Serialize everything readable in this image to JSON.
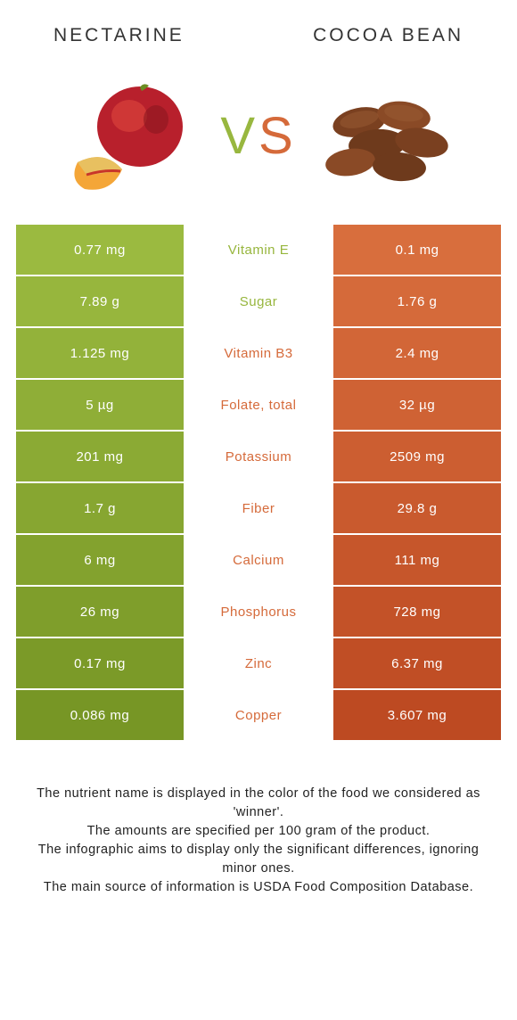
{
  "colors": {
    "left": "#97b63d",
    "right": "#d56a3a",
    "row_alt_darken": 0,
    "background": "#ffffff"
  },
  "header": {
    "left_title": "NECTARINE",
    "right_title": "COCOA BEAN",
    "vs_v": "V",
    "vs_s": "S"
  },
  "rows": [
    {
      "label": "Vitamin E",
      "left": "0.77 mg",
      "right": "0.1 mg",
      "winner": "left"
    },
    {
      "label": "Sugar",
      "left": "7.89 g",
      "right": "1.76 g",
      "winner": "left"
    },
    {
      "label": "Vitamin B3",
      "left": "1.125 mg",
      "right": "2.4 mg",
      "winner": "right"
    },
    {
      "label": "Folate, total",
      "left": "5 µg",
      "right": "32 µg",
      "winner": "right"
    },
    {
      "label": "Potassium",
      "left": "201 mg",
      "right": "2509 mg",
      "winner": "right"
    },
    {
      "label": "Fiber",
      "left": "1.7 g",
      "right": "29.8 g",
      "winner": "right"
    },
    {
      "label": "Calcium",
      "left": "6 mg",
      "right": "111 mg",
      "winner": "right"
    },
    {
      "label": "Phosphorus",
      "left": "26 mg",
      "right": "728 mg",
      "winner": "right"
    },
    {
      "label": "Zinc",
      "left": "0.17 mg",
      "right": "6.37 mg",
      "winner": "right"
    },
    {
      "label": "Copper",
      "left": "0.086 mg",
      "right": "3.607 mg",
      "winner": "right"
    }
  ],
  "row_shades": {
    "left": [
      "#9bba40",
      "#97b63d",
      "#93b23a",
      "#8fae37",
      "#8baa34",
      "#87a631",
      "#83a22e",
      "#7f9e2b",
      "#7b9a28",
      "#779625"
    ],
    "right": [
      "#d86e3d",
      "#d56a3a",
      "#d26637",
      "#cf6234",
      "#cc5e31",
      "#c95a2e",
      "#c6562b",
      "#c35228",
      "#c04e25",
      "#bd4a22"
    ]
  },
  "footnotes": [
    "The nutrient name is displayed in the color of the food we considered as 'winner'.",
    "The amounts are specified per 100 gram of the product.",
    "The infographic aims to display only the significant differences, ignoring minor ones.",
    "The main source of information is USDA Food Composition Database."
  ]
}
